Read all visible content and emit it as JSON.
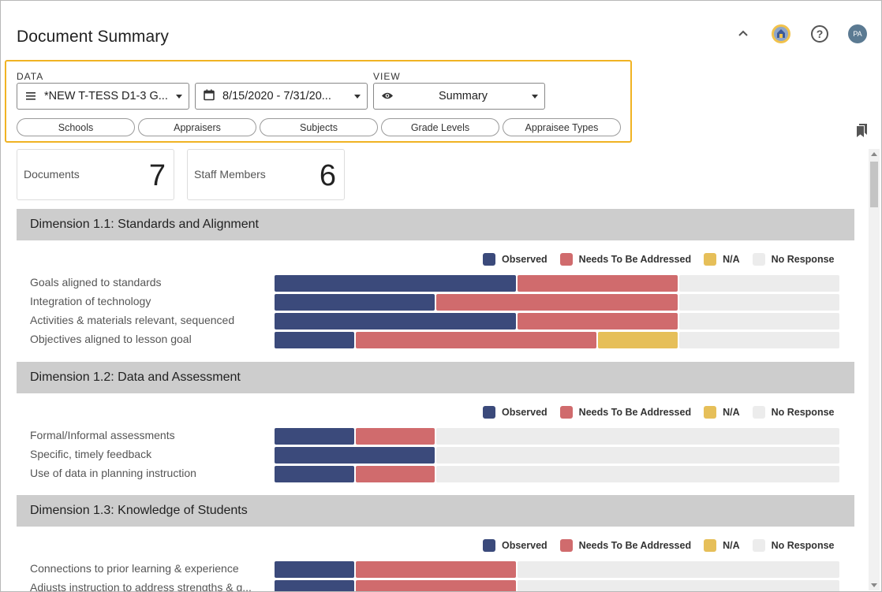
{
  "header": {
    "breadcrumb_fragment": "... | ... , ...",
    "title": "Document Summary",
    "icons": [
      "chevron-up-icon",
      "district-logo-icon",
      "help-icon"
    ],
    "avatar_initials": "PA"
  },
  "filters": {
    "data_label": "DATA",
    "view_label": "VIEW",
    "form_select": {
      "icon": "list-icon",
      "value": "*NEW T-TESS D1-3 G..."
    },
    "date_select": {
      "icon": "calendar-icon",
      "value": "8/15/2020 - 7/31/20..."
    },
    "view_select": {
      "icon": "eye-icon",
      "value": "Summary"
    },
    "chips": [
      "Schools",
      "Appraisers",
      "Subjects",
      "Grade Levels",
      "Appraisee Types"
    ]
  },
  "stats": [
    {
      "label": "Documents",
      "value": "7"
    },
    {
      "label": "Staff Members",
      "value": "6"
    }
  ],
  "legend": {
    "items": [
      {
        "key": "observed",
        "label": "Observed",
        "color": "#3b4a7b"
      },
      {
        "key": "needs",
        "label": "Needs To Be Addressed",
        "color": "#d06b6d"
      },
      {
        "key": "na",
        "label": "N/A",
        "color": "#e6bf59"
      },
      {
        "key": "none",
        "label": "No Response",
        "color": "#ececec"
      }
    ]
  },
  "dimensions": [
    {
      "title": "Dimension 1.1: Standards and Alignment",
      "rows": [
        {
          "label": "Goals aligned to standards",
          "values": [
            3,
            2,
            0,
            2
          ]
        },
        {
          "label": "Integration of technology",
          "values": [
            2,
            3,
            0,
            2
          ]
        },
        {
          "label": "Activities & materials relevant, sequenced",
          "values": [
            3,
            2,
            0,
            2
          ]
        },
        {
          "label": "Objectives aligned to lesson goal",
          "values": [
            1,
            3,
            1,
            2
          ]
        }
      ]
    },
    {
      "title": "Dimension 1.2: Data and Assessment",
      "rows": [
        {
          "label": "Formal/Informal assessments",
          "values": [
            1,
            1,
            0,
            5
          ]
        },
        {
          "label": "Specific, timely feedback",
          "values": [
            2,
            0,
            0,
            5
          ]
        },
        {
          "label": "Use of data in planning instruction",
          "values": [
            1,
            1,
            0,
            5
          ]
        }
      ]
    },
    {
      "title": "Dimension 1.3: Knowledge of Students",
      "rows": [
        {
          "label": "Connections to prior learning & experience",
          "values": [
            1,
            2,
            0,
            4
          ]
        },
        {
          "label": "Adjusts instruction to address strengths & g...",
          "values": [
            1,
            2,
            0,
            4
          ]
        }
      ]
    }
  ]
}
